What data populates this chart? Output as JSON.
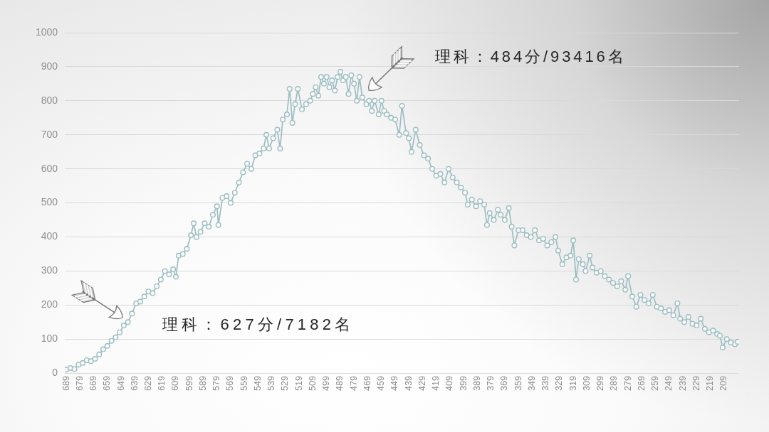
{
  "chart_data": {
    "type": "line",
    "annotations": [
      "理科：484分/93416名",
      "理科：627分/7182名"
    ],
    "x": [
      689,
      686,
      683,
      680,
      677,
      674,
      671,
      668,
      665,
      662,
      659,
      656,
      653,
      650,
      647,
      644,
      641,
      638,
      635,
      632,
      629,
      626,
      623,
      620,
      617,
      614,
      611,
      609,
      607,
      604,
      601,
      598,
      596,
      594,
      591,
      588,
      585,
      582,
      579,
      578,
      575,
      572,
      569,
      566,
      563,
      560,
      557,
      554,
      551,
      548,
      545,
      543,
      541,
      538,
      535,
      533,
      531,
      528,
      526,
      524,
      522,
      520,
      517,
      514,
      511,
      509,
      507,
      505,
      503,
      501,
      499,
      497,
      495,
      493,
      491,
      489,
      487,
      485,
      483,
      481,
      479,
      477,
      475,
      473,
      470,
      468,
      466,
      464,
      461,
      459,
      457,
      455,
      452,
      449,
      446,
      444,
      441,
      439,
      437,
      434,
      431,
      428,
      425,
      422,
      419,
      416,
      413,
      410,
      407,
      404,
      401,
      398,
      396,
      393,
      390,
      387,
      384,
      382,
      380,
      377,
      374,
      372,
      369,
      366,
      364,
      362,
      359,
      356,
      353,
      350,
      347,
      344,
      341,
      338,
      335,
      332,
      330,
      327,
      324,
      321,
      319,
      317,
      315,
      312,
      310,
      307,
      305,
      302,
      299,
      296,
      293,
      290,
      287,
      284,
      281,
      279,
      276,
      273,
      270,
      267,
      264,
      261,
      258,
      255,
      252,
      249,
      246,
      243,
      241,
      238,
      235,
      232,
      229,
      226,
      223,
      220,
      217,
      214,
      212,
      210,
      207,
      204,
      201,
      199
    ],
    "series": [
      {
        "color": "#9dbdc2",
        "values": [
          10,
          15,
          12,
          25,
          30,
          38,
          35,
          42,
          55,
          70,
          80,
          95,
          105,
          120,
          140,
          150,
          175,
          205,
          210,
          225,
          240,
          235,
          255,
          275,
          300,
          290,
          305,
          283,
          345,
          350,
          365,
          405,
          440,
          400,
          415,
          440,
          430,
          465,
          490,
          435,
          515,
          520,
          500,
          530,
          560,
          590,
          615,
          600,
          640,
          645,
          660,
          700,
          660,
          690,
          715,
          660,
          745,
          760,
          835,
          735,
          790,
          835,
          775,
          790,
          800,
          820,
          840,
          815,
          870,
          850,
          870,
          840,
          860,
          830,
          870,
          885,
          860,
          870,
          820,
          875,
          850,
          800,
          870,
          810,
          790,
          800,
          770,
          800,
          760,
          800,
          770,
          760,
          750,
          745,
          700,
          785,
          705,
          690,
          650,
          715,
          670,
          640,
          630,
          600,
          580,
          585,
          560,
          600,
          575,
          560,
          545,
          530,
          495,
          510,
          490,
          505,
          495,
          435,
          470,
          450,
          480,
          465,
          450,
          485,
          430,
          375,
          420,
          420,
          405,
          400,
          420,
          390,
          395,
          375,
          385,
          400,
          360,
          320,
          340,
          345,
          390,
          275,
          335,
          320,
          300,
          345,
          310,
          295,
          300,
          285,
          275,
          265,
          255,
          270,
          245,
          285,
          225,
          195,
          230,
          215,
          205,
          230,
          195,
          190,
          180,
          185,
          170,
          205,
          160,
          150,
          165,
          145,
          140,
          160,
          130,
          120,
          125,
          115,
          110,
          75,
          100,
          90,
          85,
          92
        ]
      }
    ],
    "xlim": [
      690,
      198
    ],
    "xticks": [
      689,
      679,
      669,
      659,
      649,
      639,
      629,
      619,
      609,
      599,
      589,
      579,
      569,
      559,
      549,
      539,
      529,
      519,
      509,
      499,
      489,
      479,
      469,
      459,
      449,
      439,
      429,
      419,
      409,
      399,
      389,
      379,
      369,
      359,
      349,
      339,
      329,
      319,
      309,
      299,
      289,
      279,
      269,
      259,
      249,
      239,
      229,
      219,
      209
    ],
    "ylim": [
      0,
      1000
    ],
    "yticks": [
      0,
      100,
      200,
      300,
      400,
      500,
      600,
      700,
      800,
      900,
      1000
    ],
    "grid": "y",
    "marker": "circle",
    "line_style": "solid"
  }
}
